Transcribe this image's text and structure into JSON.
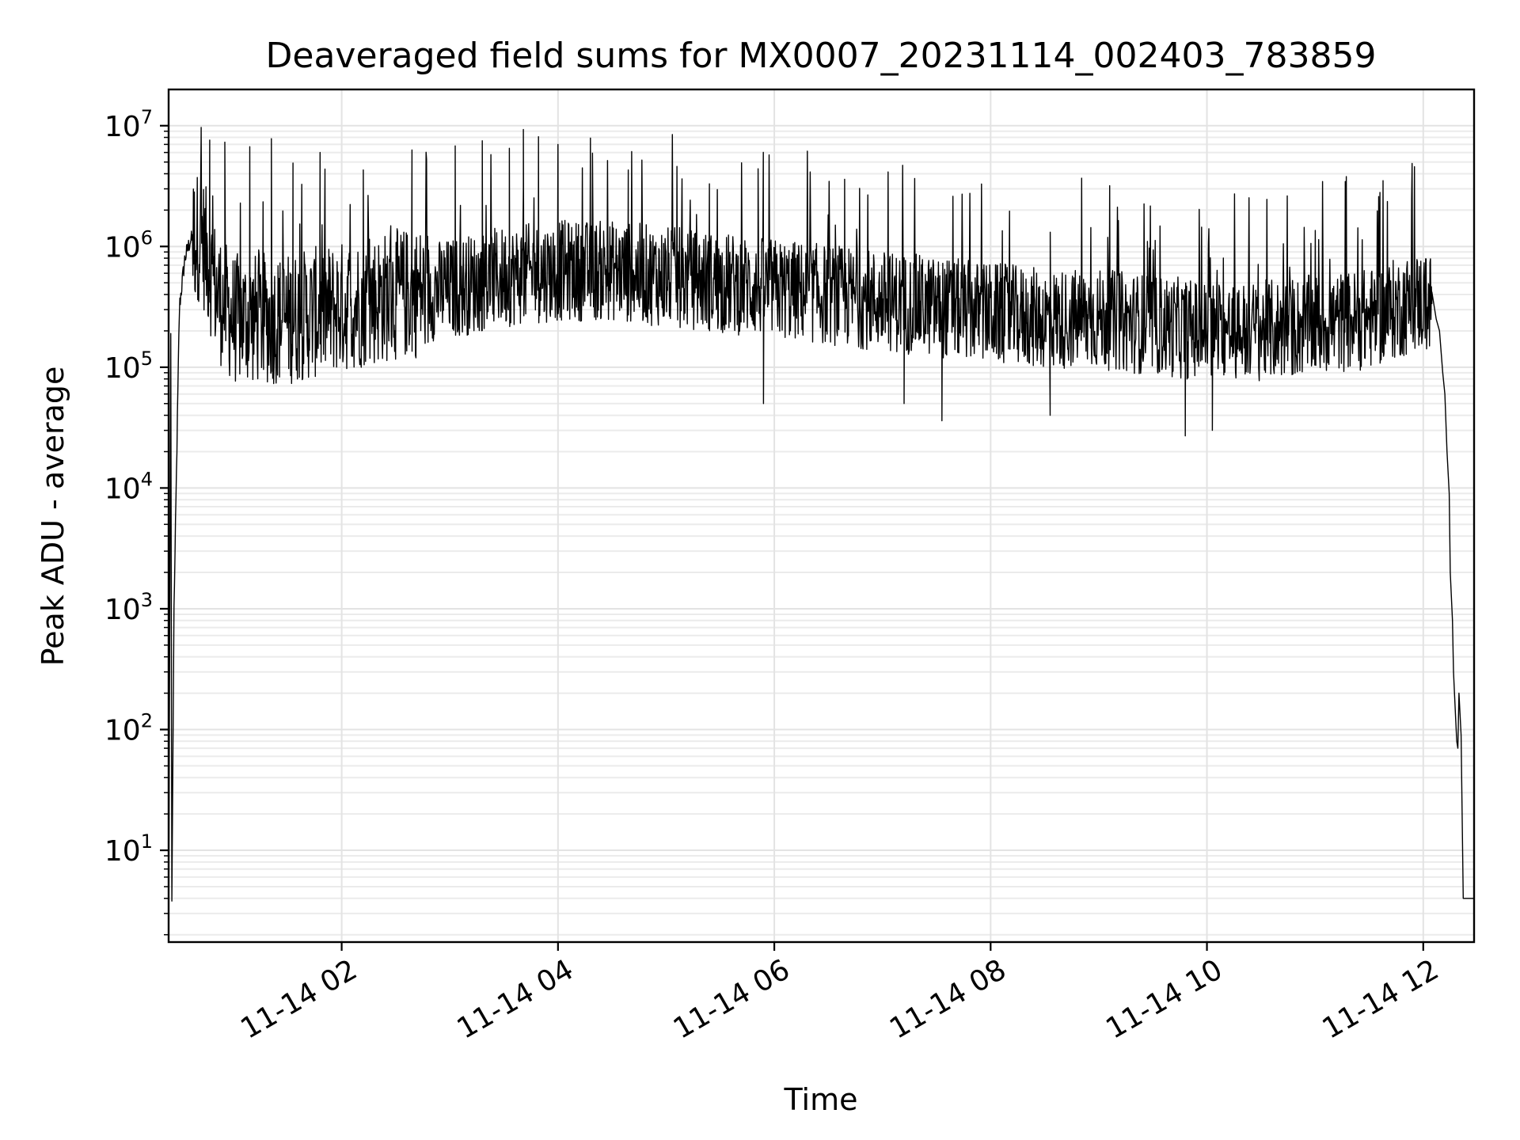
{
  "chart_data": {
    "type": "line",
    "title": "Deaveraged field sums for MX0007_20231114_002403_783859",
    "xlabel": "Time",
    "ylabel": "Peak ADU - average",
    "yscale": "log",
    "ylim_exponents": [
      0.24,
      7.3
    ],
    "xlim_hours": [
      0.4,
      12.47
    ],
    "grid": true,
    "line_color": "#000000",
    "x_ticks": [
      {
        "hours": 2,
        "label": "11-14 02"
      },
      {
        "hours": 4,
        "label": "11-14 04"
      },
      {
        "hours": 6,
        "label": "11-14 06"
      },
      {
        "hours": 8,
        "label": "11-14 08"
      },
      {
        "hours": 10,
        "label": "11-14 10"
      },
      {
        "hours": 12,
        "label": "11-14 12"
      }
    ],
    "y_ticks": [
      {
        "exp": 1,
        "base": "10",
        "sup": "1"
      },
      {
        "exp": 2,
        "base": "10",
        "sup": "2"
      },
      {
        "exp": 3,
        "base": "10",
        "sup": "3"
      },
      {
        "exp": 4,
        "base": "10",
        "sup": "4"
      },
      {
        "exp": 5,
        "base": "10",
        "sup": "5"
      },
      {
        "exp": 6,
        "base": "10",
        "sup": "6"
      },
      {
        "exp": 7,
        "base": "10",
        "sup": "7"
      }
    ],
    "series": [
      {
        "name": "deaveraged field sum",
        "envelope": {
          "hours": [
            0.4,
            0.5,
            0.55,
            0.6,
            0.7,
            0.85,
            1.0,
            1.5,
            2.0,
            2.5,
            3.0,
            3.5,
            4.0,
            4.5,
            5.0,
            5.5,
            6.0,
            6.5,
            7.0,
            7.5,
            8.0,
            8.5,
            9.0,
            9.5,
            10.0,
            10.5,
            11.0,
            11.5,
            11.8,
            12.0,
            12.15
          ],
          "median": [
            0.5,
            5.5,
            5.9,
            6.05,
            6.1,
            5.6,
            5.4,
            5.4,
            5.5,
            5.6,
            5.65,
            5.75,
            5.8,
            5.8,
            5.75,
            5.7,
            5.65,
            5.6,
            5.55,
            5.5,
            5.45,
            5.4,
            5.4,
            5.35,
            5.3,
            5.3,
            5.35,
            5.4,
            5.5,
            5.55,
            5.5
          ]
        },
        "spikes": [
          {
            "hours": 0.7,
            "value": 7500000
          },
          {
            "hours": 0.78,
            "value": 7600000
          },
          {
            "hours": 0.92,
            "value": 7300000
          },
          {
            "hours": 1.15,
            "value": 6700000
          },
          {
            "hours": 1.35,
            "value": 7800000
          },
          {
            "hours": 1.55,
            "value": 4900000
          },
          {
            "hours": 1.8,
            "value": 6000000
          },
          {
            "hours": 2.2,
            "value": 4300000
          },
          {
            "hours": 2.65,
            "value": 6300000
          },
          {
            "hours": 3.05,
            "value": 6800000
          },
          {
            "hours": 3.3,
            "value": 7500000
          },
          {
            "hours": 3.55,
            "value": 6500000
          },
          {
            "hours": 3.68,
            "value": 9300000
          },
          {
            "hours": 3.82,
            "value": 8100000
          },
          {
            "hours": 4.0,
            "value": 7000000
          },
          {
            "hours": 4.3,
            "value": 7900000
          },
          {
            "hours": 4.65,
            "value": 4300000
          },
          {
            "hours": 5.1,
            "value": 4600000
          },
          {
            "hours": 5.4,
            "value": 3300000
          },
          {
            "hours": 5.85,
            "value": 4400000
          },
          {
            "hours": 6.65,
            "value": 3600000
          },
          {
            "hours": 9.45,
            "value": 1100000
          },
          {
            "hours": 11.6,
            "value": 2800000
          }
        ],
        "dips": [
          {
            "hours": 5.9,
            "value": 50000
          },
          {
            "hours": 7.2,
            "value": 50000
          },
          {
            "hours": 7.55,
            "value": 36000
          },
          {
            "hours": 8.55,
            "value": 40000
          },
          {
            "hours": 9.8,
            "value": 27000
          },
          {
            "hours": 10.05,
            "value": 30000
          }
        ],
        "tail": {
          "hours": [
            12.08,
            12.12,
            12.15,
            12.18,
            12.2,
            12.22,
            12.24,
            12.25,
            12.27,
            12.28,
            12.3,
            12.31,
            12.32,
            12.33,
            12.35,
            12.37,
            12.4,
            12.43,
            12.47
          ],
          "values": [
            420000,
            250000,
            200000,
            90000,
            60000,
            20000,
            9000,
            2000,
            800,
            300,
            120,
            80,
            70,
            200,
            90,
            4,
            4,
            4,
            4
          ]
        }
      }
    ]
  }
}
